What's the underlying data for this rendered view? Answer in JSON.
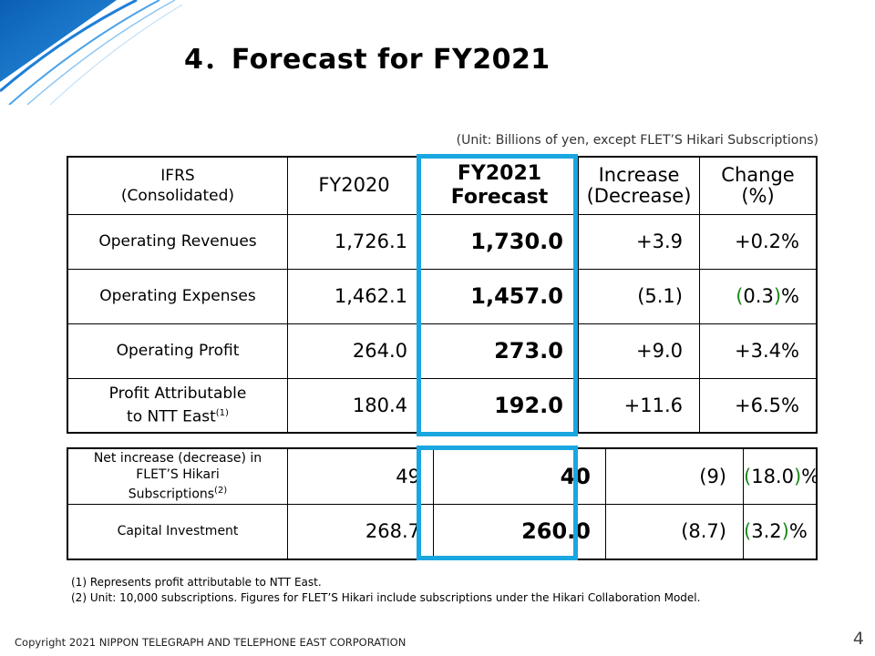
{
  "header": {
    "title": "4．Forecast for FY2021",
    "unit_note": "(Unit: Billions of yen, except FLET’S Hikari Subscriptions)"
  },
  "colors": {
    "accent": "#1aa6e0",
    "negative_paren": "#1a8a1a",
    "corner_blue": "#0a5fb4"
  },
  "table": {
    "headers": {
      "label_line1": "IFRS",
      "label_line2": "(Consolidated)",
      "fy2020": "FY2020",
      "fy2021_line1": "FY2021",
      "fy2021_line2": "Forecast",
      "increase_line1": "Increase",
      "increase_line2": "(Decrease)",
      "change_line1": "Change",
      "change_line2": "(%)"
    },
    "rows": [
      {
        "label": "Operating Revenues",
        "fy2020": "1,726.1",
        "fy2021": "1,730.0",
        "increase": "+3.9",
        "change": "+0.2%"
      },
      {
        "label": "Operating Expenses",
        "fy2020": "1,462.1",
        "fy2021": "1,457.0",
        "increase": "(5.1)",
        "change_open": "(",
        "change_value": "0.3",
        "change_close": ")",
        "change_suffix": "%"
      },
      {
        "label": "Operating Profit",
        "fy2020": "264.0",
        "fy2021": "273.0",
        "increase": "+9.0",
        "change": "+3.4%"
      },
      {
        "label_line1": "Profit Attributable",
        "label_line2": "to NTT East",
        "note": "(1)",
        "fy2020": "180.4",
        "fy2021": "192.0",
        "increase": "+11.6",
        "change": "+6.5%"
      }
    ],
    "rows2": [
      {
        "label_line1": "Net increase (decrease) in",
        "label_line2": "FLET’S Hikari",
        "label_line3": "Subscriptions",
        "note": "(2)",
        "fy2020": "49",
        "fy2021": "40",
        "increase": "(9)",
        "change_open": "(",
        "change_value": "18.0",
        "change_close": ")",
        "change_suffix": "%"
      },
      {
        "label": "Capital Investment",
        "fy2020": "268.7",
        "fy2021": "260.0",
        "increase": "(8.7)",
        "change_open": "(",
        "change_value": "3.2",
        "change_close": ")",
        "change_suffix": "%"
      }
    ]
  },
  "footnotes": {
    "note1": "(1) Represents profit attributable to NTT East.",
    "note2": "(2) Unit: 10,000 subscriptions. Figures for FLET’S Hikari include subscriptions  under the Hikari Collaboration Model."
  },
  "footer": {
    "copyright": "Copyright 2021 NIPPON TELEGRAPH AND TELEPHONE EAST CORPORATION",
    "page_number": "4"
  }
}
